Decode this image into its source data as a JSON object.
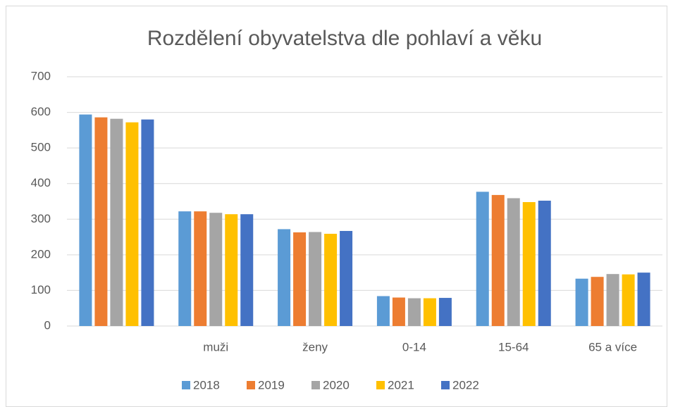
{
  "chart_data": {
    "type": "bar",
    "title": "Rozdělení obyvatelstva dle pohlaví a věku",
    "categories": [
      null,
      "muži",
      "ženy",
      "0-14",
      "15-64",
      "65 a více"
    ],
    "series": [
      {
        "name": "2018",
        "color": "#5b9bd5",
        "values": [
          594,
          322,
          272,
          84,
          377,
          133
        ]
      },
      {
        "name": "2019",
        "color": "#ed7d31",
        "values": [
          586,
          322,
          263,
          80,
          368,
          138
        ]
      },
      {
        "name": "2020",
        "color": "#a5a5a5",
        "values": [
          582,
          318,
          264,
          78,
          359,
          146
        ]
      },
      {
        "name": "2021",
        "color": "#ffc000",
        "values": [
          572,
          314,
          259,
          78,
          348,
          145
        ]
      },
      {
        "name": "2022",
        "color": "#4472c4",
        "values": [
          580,
          314,
          267,
          79,
          352,
          150
        ]
      }
    ],
    "ylim": [
      0,
      700
    ],
    "yticks": [
      0,
      100,
      200,
      300,
      400,
      500,
      600,
      700
    ],
    "grid": true,
    "legend": "bottom"
  }
}
